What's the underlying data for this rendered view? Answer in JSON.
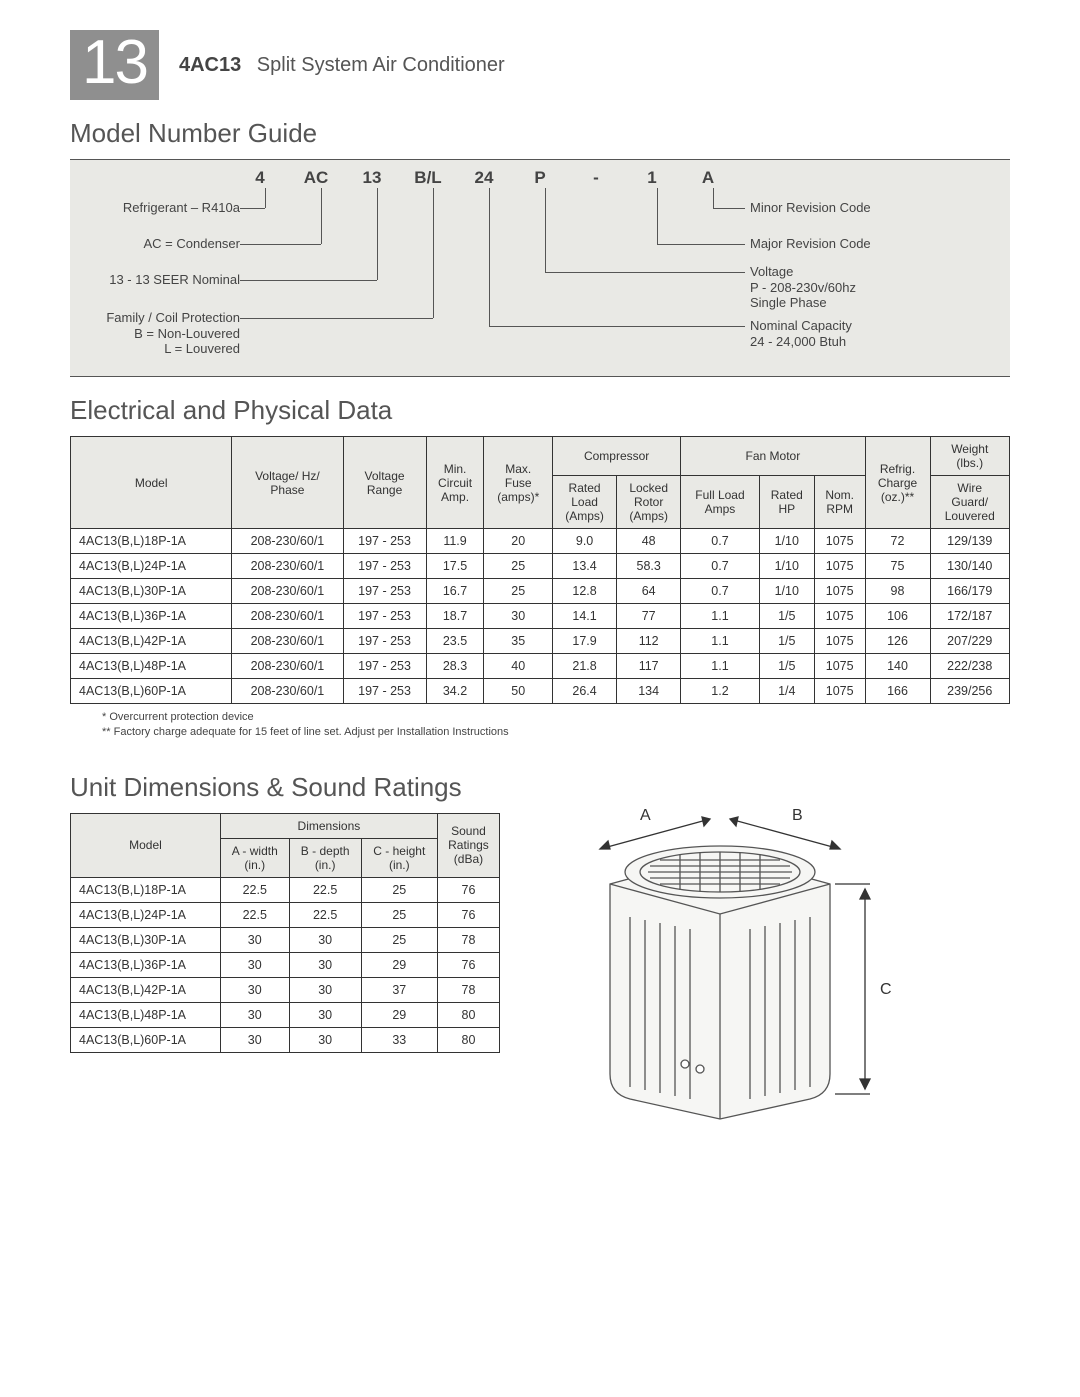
{
  "page": {
    "big_number": "13",
    "product_code": "4AC13",
    "product_name": "Split System Air Conditioner"
  },
  "sections": {
    "model_guide_title": "Model Number Guide",
    "elec_title": "Electrical and Physical Data",
    "dim_title": "Unit Dimensions & Sound Ratings"
  },
  "model_guide": {
    "codes": [
      "4",
      "AC",
      "13",
      "B/L",
      "24",
      "P",
      "-",
      "1",
      "A"
    ],
    "left_labels": [
      "Refrigerant – R410a",
      "AC = Condenser",
      "13 - 13 SEER Nominal",
      "Family / Coil Protection\nB = Non-Louvered\nL = Louvered"
    ],
    "right_labels": [
      "Minor Revision Code",
      "Major Revision Code",
      "Voltage\nP - 208-230v/60hz\nSingle Phase",
      "Nominal Capacity\n24 - 24,000 Btuh"
    ],
    "bg_color": "#e9e9e5",
    "line_color": "#555555"
  },
  "elec_table": {
    "headers": {
      "model": "Model",
      "vhp": "Voltage/ Hz/\nPhase",
      "vrange": "Voltage\nRange",
      "min_circ": "Min.\nCircuit\nAmp.",
      "max_fuse": "Max.\nFuse\n(amps)*",
      "compressor": "Compressor",
      "comp_rla": "Rated\nLoad\n(Amps)",
      "comp_lra": "Locked\nRotor\n(Amps)",
      "fan": "Fan Motor",
      "fan_fla": "Full Load\nAmps",
      "fan_hp": "Rated\nHP",
      "fan_rpm": "Nom.\nRPM",
      "refrig": "Refrig.\nCharge\n(oz.)**",
      "weight": "Weight\n(lbs.)",
      "weight_sub": "Wire\nGuard/\nLouvered"
    },
    "rows": [
      {
        "model": "4AC13(B,L)18P-1A",
        "vhp": "208-230/60/1",
        "vr": "197 - 253",
        "min": "11.9",
        "max": "20",
        "rla": "9.0",
        "lra": "48",
        "fla": "0.7",
        "hp": "1/10",
        "rpm": "1075",
        "rc": "72",
        "wt": "129/139"
      },
      {
        "model": "4AC13(B,L)24P-1A",
        "vhp": "208-230/60/1",
        "vr": "197 - 253",
        "min": "17.5",
        "max": "25",
        "rla": "13.4",
        "lra": "58.3",
        "fla": "0.7",
        "hp": "1/10",
        "rpm": "1075",
        "rc": "75",
        "wt": "130/140"
      },
      {
        "model": "4AC13(B,L)30P-1A",
        "vhp": "208-230/60/1",
        "vr": "197 - 253",
        "min": "16.7",
        "max": "25",
        "rla": "12.8",
        "lra": "64",
        "fla": "0.7",
        "hp": "1/10",
        "rpm": "1075",
        "rc": "98",
        "wt": "166/179"
      },
      {
        "model": "4AC13(B,L)36P-1A",
        "vhp": "208-230/60/1",
        "vr": "197 - 253",
        "min": "18.7",
        "max": "30",
        "rla": "14.1",
        "lra": "77",
        "fla": "1.1",
        "hp": "1/5",
        "rpm": "1075",
        "rc": "106",
        "wt": "172/187"
      },
      {
        "model": "4AC13(B,L)42P-1A",
        "vhp": "208-230/60/1",
        "vr": "197 - 253",
        "min": "23.5",
        "max": "35",
        "rla": "17.9",
        "lra": "112",
        "fla": "1.1",
        "hp": "1/5",
        "rpm": "1075",
        "rc": "126",
        "wt": "207/229"
      },
      {
        "model": "4AC13(B,L)48P-1A",
        "vhp": "208-230/60/1",
        "vr": "197 - 253",
        "min": "28.3",
        "max": "40",
        "rla": "21.8",
        "lra": "117",
        "fla": "1.1",
        "hp": "1/5",
        "rpm": "1075",
        "rc": "140",
        "wt": "222/238"
      },
      {
        "model": "4AC13(B,L)60P-1A",
        "vhp": "208-230/60/1",
        "vr": "197 - 253",
        "min": "34.2",
        "max": "50",
        "rla": "26.4",
        "lra": "134",
        "fla": "1.2",
        "hp": "1/4",
        "rpm": "1075",
        "rc": "166",
        "wt": "239/256"
      }
    ],
    "footnote1": "*   Overcurrent protection device",
    "footnote2": "**  Factory charge adequate for 15 feet of line set. Adjust per Installation Instructions"
  },
  "dim_table": {
    "headers": {
      "model": "Model",
      "dims": "Dimensions",
      "a": "A - width\n(in.)",
      "b": "B - depth\n(in.)",
      "c": "C - height\n(in.)",
      "sound": "Sound\nRatings\n(dBa)"
    },
    "rows": [
      {
        "model": "4AC13(B,L)18P-1A",
        "a": "22.5",
        "b": "22.5",
        "c": "25",
        "s": "76"
      },
      {
        "model": "4AC13(B,L)24P-1A",
        "a": "22.5",
        "b": "22.5",
        "c": "25",
        "s": "76"
      },
      {
        "model": "4AC13(B,L)30P-1A",
        "a": "30",
        "b": "30",
        "c": "25",
        "s": "78"
      },
      {
        "model": "4AC13(B,L)36P-1A",
        "a": "30",
        "b": "30",
        "c": "29",
        "s": "76"
      },
      {
        "model": "4AC13(B,L)42P-1A",
        "a": "30",
        "b": "30",
        "c": "37",
        "s": "78"
      },
      {
        "model": "4AC13(B,L)48P-1A",
        "a": "30",
        "b": "30",
        "c": "29",
        "s": "80"
      },
      {
        "model": "4AC13(B,L)60P-1A",
        "a": "30",
        "b": "30",
        "c": "33",
        "s": "80"
      }
    ]
  },
  "unit_diagram": {
    "label_a": "A",
    "label_b": "B",
    "label_c": "C",
    "stroke": "#555555",
    "fill": "#f4f4f2"
  }
}
